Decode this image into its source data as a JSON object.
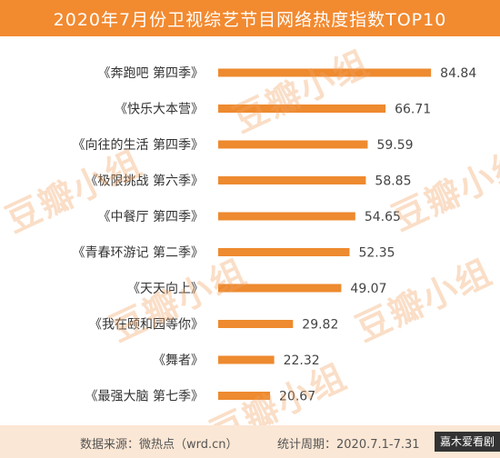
{
  "chart_data": {
    "type": "bar",
    "orientation": "horizontal",
    "title": "2020年7月份卫视综艺节目网络热度指数TOP10",
    "categories": [
      "《奔跑吧 第四季》",
      "《快乐大本营》",
      "《向往的生活 第四季》",
      "《极限挑战 第六季》",
      "《中餐厅 第四季》",
      "《青春环游记 第二季》",
      "《天天向上》",
      "《我在颐和园等你》",
      "《舞者》",
      "《最强大脑 第七季》"
    ],
    "value_labels": [
      "84.84",
      "66.71",
      "59.59",
      "58.85",
      "54.65",
      "52.35",
      "49.07",
      "29.82",
      "22.32",
      "20.67"
    ],
    "values": [
      84.84,
      66.71,
      59.59,
      58.85,
      54.65,
      52.35,
      49.07,
      29.82,
      22.32,
      20.67
    ],
    "bar_color": "#ee8a2f",
    "grid": false,
    "legend": "none"
  },
  "footer": {
    "source": "数据来源：微热点（wrd.cn）",
    "period": "统计周期：2020.7.1-7.31",
    "tag": "嘉木爱看剧"
  },
  "watermarks": [
    "豆瓣小组",
    "豆瓣小组",
    "豆瓣小组",
    "豆瓣小组",
    "豆瓣小组",
    "豆瓣小组"
  ]
}
